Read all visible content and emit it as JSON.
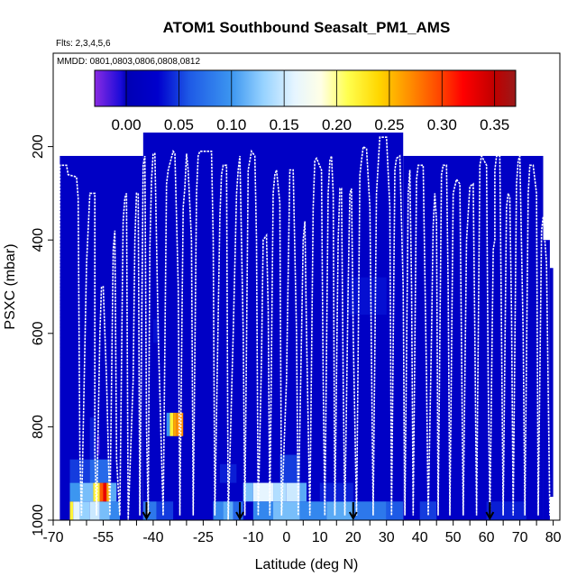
{
  "chart_data": {
    "type": "heatmap",
    "title": "ATOM1 Southbound Seasalt_PM1_AMS",
    "subtitle_flights": "Flts: 2,3,4,5,6",
    "subtitle_dates": "MMDD: 0801,0803,0806,0808,0812",
    "xlabel": "Latitude (deg N)",
    "ylabel": "PSXC (mbar)",
    "xlim": [
      -70,
      82
    ],
    "ylim": [
      1000,
      0
    ],
    "x_tick_labels": [
      "-70",
      "-55",
      "-40",
      "-25",
      "-10",
      "0",
      "10",
      "20",
      "30",
      "40",
      "50",
      "60",
      "70",
      "80"
    ],
    "x_tick_values": [
      -70,
      -55,
      -40,
      -25,
      -10,
      0,
      10,
      20,
      30,
      40,
      50,
      60,
      70,
      80
    ],
    "y_tick_labels": [
      "200",
      "400",
      "600",
      "800",
      "1000"
    ],
    "y_tick_values": [
      200,
      400,
      600,
      800,
      1000
    ],
    "colorbar": {
      "min": -0.03,
      "max": 0.37,
      "tick_labels": [
        "0.00",
        "0.05",
        "0.10",
        "0.15",
        "0.20",
        "0.25",
        "0.30",
        "0.35"
      ],
      "tick_values": [
        0.0,
        0.05,
        0.1,
        0.15,
        0.2,
        0.25,
        0.3,
        0.35
      ],
      "stops": [
        {
          "v": -0.03,
          "c": "#8a2be2"
        },
        {
          "v": -0.005,
          "c": "#1a0bd9"
        },
        {
          "v": 0.0,
          "c": "#0000b4"
        },
        {
          "v": 0.03,
          "c": "#0000cd"
        },
        {
          "v": 0.06,
          "c": "#1e5ae6"
        },
        {
          "v": 0.1,
          "c": "#3c96f0"
        },
        {
          "v": 0.13,
          "c": "#96d2ff"
        },
        {
          "v": 0.16,
          "c": "#e6f5ff"
        },
        {
          "v": 0.185,
          "c": "#ffffe6"
        },
        {
          "v": 0.21,
          "c": "#ffff50"
        },
        {
          "v": 0.24,
          "c": "#ffd700"
        },
        {
          "v": 0.27,
          "c": "#ff8c00"
        },
        {
          "v": 0.3,
          "c": "#ff4000"
        },
        {
          "v": 0.32,
          "c": "#ff0000"
        },
        {
          "v": 0.35,
          "c": "#c00000"
        },
        {
          "v": 0.37,
          "c": "#9a1a1a"
        }
      ]
    },
    "background_value": 0.02,
    "coverage": [
      {
        "lat0": -68,
        "lat1": -43,
        "p_top": 220,
        "p_bot": 1000
      },
      {
        "lat0": -43,
        "lat1": 35,
        "p_top": 170,
        "p_bot": 1000
      },
      {
        "lat0": 35,
        "lat1": 77,
        "p_top": 220,
        "p_bot": 1000
      },
      {
        "lat0": 77,
        "lat1": 79,
        "p_top": 400,
        "p_bot": 1000
      },
      {
        "lat0": 79,
        "lat1": 80,
        "p_top": 460,
        "p_bot": 950
      }
    ],
    "cells": [
      {
        "lat0": -65,
        "lat1": -64,
        "p_top": 960,
        "p_bot": 1000,
        "value": 0.22
      },
      {
        "lat0": -64,
        "lat1": -62,
        "p_top": 960,
        "p_bot": 1000,
        "value": 0.16
      },
      {
        "lat0": -62,
        "lat1": -59,
        "p_top": 960,
        "p_bot": 1000,
        "value": 0.13
      },
      {
        "lat0": -59,
        "lat1": -56,
        "p_top": 960,
        "p_bot": 1000,
        "value": 0.15
      },
      {
        "lat0": -56,
        "lat1": -53,
        "p_top": 960,
        "p_bot": 1000,
        "value": 0.12
      },
      {
        "lat0": -53,
        "lat1": -50,
        "p_top": 960,
        "p_bot": 1000,
        "value": 0.09
      },
      {
        "lat0": -65,
        "lat1": -62,
        "p_top": 920,
        "p_bot": 960,
        "value": 0.1
      },
      {
        "lat0": -62,
        "lat1": -58,
        "p_top": 920,
        "p_bot": 960,
        "value": 0.12
      },
      {
        "lat0": -58,
        "lat1": -56,
        "p_top": 920,
        "p_bot": 960,
        "value": 0.22
      },
      {
        "lat0": -56,
        "lat1": -55,
        "p_top": 920,
        "p_bot": 960,
        "value": 0.29
      },
      {
        "lat0": -55,
        "lat1": -54,
        "p_top": 920,
        "p_bot": 960,
        "value": 0.33
      },
      {
        "lat0": -54,
        "lat1": -53,
        "p_top": 920,
        "p_bot": 960,
        "value": 0.26
      },
      {
        "lat0": -53,
        "lat1": -51,
        "p_top": 920,
        "p_bot": 960,
        "value": 0.11
      },
      {
        "lat0": -65,
        "lat1": -59,
        "p_top": 870,
        "p_bot": 920,
        "value": 0.05
      },
      {
        "lat0": -59,
        "lat1": -53,
        "p_top": 870,
        "p_bot": 920,
        "value": 0.07
      },
      {
        "lat0": -59,
        "lat1": -57,
        "p_top": 780,
        "p_bot": 870,
        "value": 0.04
      },
      {
        "lat0": -57,
        "lat1": -56,
        "p_top": 820,
        "p_bot": 860,
        "value": -0.01
      },
      {
        "lat0": -36,
        "lat1": -35,
        "p_top": 770,
        "p_bot": 820,
        "value": 0.1
      },
      {
        "lat0": -35,
        "lat1": -34,
        "p_top": 770,
        "p_bot": 820,
        "value": 0.22
      },
      {
        "lat0": -34,
        "lat1": -33,
        "p_top": 770,
        "p_bot": 820,
        "value": 0.26
      },
      {
        "lat0": -33,
        "lat1": -31,
        "p_top": 770,
        "p_bot": 820,
        "value": 0.27
      },
      {
        "lat0": -43,
        "lat1": -39,
        "p_top": 960,
        "p_bot": 1000,
        "value": 0.08
      },
      {
        "lat0": -39,
        "lat1": -34,
        "p_top": 960,
        "p_bot": 1000,
        "value": 0.05
      },
      {
        "lat0": -22,
        "lat1": -19,
        "p_top": 960,
        "p_bot": 1000,
        "value": 0.09
      },
      {
        "lat0": -19,
        "lat1": -16,
        "p_top": 960,
        "p_bot": 1000,
        "value": 0.11
      },
      {
        "lat0": -16,
        "lat1": -13,
        "p_top": 960,
        "p_bot": 1000,
        "value": 0.07
      },
      {
        "lat0": -13,
        "lat1": -10,
        "p_top": 920,
        "p_bot": 960,
        "value": 0.12
      },
      {
        "lat0": -10,
        "lat1": -4,
        "p_top": 920,
        "p_bot": 960,
        "value": 0.16
      },
      {
        "lat0": -4,
        "lat1": 0,
        "p_top": 920,
        "p_bot": 960,
        "value": 0.14
      },
      {
        "lat0": 0,
        "lat1": 4,
        "p_top": 920,
        "p_bot": 960,
        "value": 0.15
      },
      {
        "lat0": 4,
        "lat1": 6,
        "p_top": 920,
        "p_bot": 960,
        "value": 0.11
      },
      {
        "lat0": -10,
        "lat1": -4,
        "p_top": 960,
        "p_bot": 1000,
        "value": 0.09
      },
      {
        "lat0": -4,
        "lat1": 4,
        "p_top": 960,
        "p_bot": 1000,
        "value": 0.12
      },
      {
        "lat0": 4,
        "lat1": 12,
        "p_top": 960,
        "p_bot": 1000,
        "value": 0.09
      },
      {
        "lat0": 12,
        "lat1": 20,
        "p_top": 960,
        "p_bot": 1000,
        "value": 0.11
      },
      {
        "lat0": 20,
        "lat1": 30,
        "p_top": 960,
        "p_bot": 1000,
        "value": 0.08
      },
      {
        "lat0": 30,
        "lat1": 35,
        "p_top": 960,
        "p_bot": 1000,
        "value": 0.06
      },
      {
        "lat0": -2,
        "lat1": 4,
        "p_top": 860,
        "p_bot": 920,
        "value": 0.05
      },
      {
        "lat0": 10,
        "lat1": 20,
        "p_top": 920,
        "p_bot": 960,
        "value": 0.04
      },
      {
        "lat0": 18,
        "lat1": 30,
        "p_top": 480,
        "p_bot": 560,
        "value": 0.035
      },
      {
        "lat0": -40,
        "lat1": -38,
        "p_top": 570,
        "p_bot": 620,
        "value": 0.035
      },
      {
        "lat0": -20,
        "lat1": -15,
        "p_top": 880,
        "p_bot": 920,
        "value": 0.04
      },
      {
        "lat0": 40,
        "lat1": 45,
        "p_top": 960,
        "p_bot": 1000,
        "value": 0.05
      },
      {
        "lat0": 60,
        "lat1": 72,
        "p_top": 960,
        "p_bot": 1000,
        "value": 0.04
      }
    ],
    "flight_track": [
      [
        -68.5,
        1000
      ],
      [
        -68,
        240
      ],
      [
        -66,
        240
      ],
      [
        -65.5,
        260
      ],
      [
        -63,
        265
      ],
      [
        -62.5,
        310
      ],
      [
        -62,
        860
      ],
      [
        -61.5,
        990
      ],
      [
        -60,
        450
      ],
      [
        -59,
        300
      ],
      [
        -58,
        300
      ],
      [
        -57.5,
        300
      ],
      [
        -57.5,
        850
      ],
      [
        -57,
        990
      ],
      [
        -56,
        600
      ],
      [
        -55.5,
        500
      ],
      [
        -55,
        500
      ],
      [
        -54,
        700
      ],
      [
        -53,
        990
      ],
      [
        -52,
        420
      ],
      [
        -51.5,
        380
      ],
      [
        -51,
        870
      ],
      [
        -50,
        990
      ],
      [
        -49,
        360
      ],
      [
        -48.5,
        310
      ],
      [
        -48,
        300
      ],
      [
        -47.5,
        1000
      ],
      [
        -46,
        700
      ],
      [
        -45.5,
        400
      ],
      [
        -45,
        300
      ],
      [
        -44.5,
        300
      ],
      [
        -44,
        990
      ],
      [
        -43,
        240
      ],
      [
        -42.5,
        220
      ],
      [
        -42,
        800
      ],
      [
        -41.5,
        990
      ],
      [
        -41,
        420
      ],
      [
        -40.5,
        270
      ],
      [
        -40,
        215
      ],
      [
        -39.5,
        215
      ],
      [
        -38.5,
        600
      ],
      [
        -37,
        990
      ],
      [
        -36,
        280
      ],
      [
        -35.5,
        250
      ],
      [
        -34,
        210
      ],
      [
        -33.5,
        215
      ],
      [
        -32.5,
        500
      ],
      [
        -32,
        990
      ],
      [
        -31,
        330
      ],
      [
        -30.5,
        290
      ],
      [
        -30,
        215
      ],
      [
        -29.5,
        250
      ],
      [
        -28.5,
        400
      ],
      [
        -28,
        990
      ],
      [
        -27,
        300
      ],
      [
        -26.5,
        220
      ],
      [
        -26,
        210
      ],
      [
        -22.5,
        210
      ],
      [
        -22,
        400
      ],
      [
        -21.5,
        990
      ],
      [
        -20,
        350
      ],
      [
        -19.5,
        260
      ],
      [
        -19,
        240
      ],
      [
        -18,
        240
      ],
      [
        -17.5,
        1000
      ],
      [
        -16,
        600
      ],
      [
        -15,
        300
      ],
      [
        -14.5,
        250
      ],
      [
        -14,
        220
      ],
      [
        -13,
        600
      ],
      [
        -12.5,
        990
      ],
      [
        -11.5,
        250
      ],
      [
        -10.5,
        210
      ],
      [
        -9.5,
        220
      ],
      [
        -9,
        400
      ],
      [
        -8.5,
        990
      ],
      [
        -7.5,
        650
      ],
      [
        -7,
        400
      ],
      [
        -6,
        390
      ],
      [
        -5.5,
        550
      ],
      [
        -5,
        990
      ],
      [
        -4,
        300
      ],
      [
        -3.5,
        260
      ],
      [
        -3,
        250
      ],
      [
        -2,
        320
      ],
      [
        -1.5,
        990
      ],
      [
        0,
        700
      ],
      [
        1,
        250
      ],
      [
        2,
        250
      ],
      [
        3,
        600
      ],
      [
        3.5,
        990
      ],
      [
        4.5,
        600
      ],
      [
        5,
        400
      ],
      [
        5.5,
        360
      ],
      [
        6,
        600
      ],
      [
        7,
        990
      ],
      [
        8,
        330
      ],
      [
        8.5,
        230
      ],
      [
        9,
        225
      ],
      [
        10.5,
        250
      ],
      [
        11,
        700
      ],
      [
        11.5,
        990
      ],
      [
        12.5,
        300
      ],
      [
        13,
        230
      ],
      [
        13.5,
        220
      ],
      [
        14,
        300
      ],
      [
        14.5,
        990
      ],
      [
        15.5,
        400
      ],
      [
        16,
        290
      ],
      [
        16.5,
        290
      ],
      [
        17,
        700
      ],
      [
        17.5,
        990
      ],
      [
        18.5,
        500
      ],
      [
        19,
        300
      ],
      [
        19.5,
        290
      ],
      [
        20,
        600
      ],
      [
        21,
        990
      ],
      [
        22,
        260
      ],
      [
        22.5,
        230
      ],
      [
        23,
        200
      ],
      [
        24,
        205
      ],
      [
        25,
        330
      ],
      [
        26,
        990
      ],
      [
        27,
        300
      ],
      [
        28,
        180
      ],
      [
        30,
        180
      ],
      [
        31,
        330
      ],
      [
        31.5,
        990
      ],
      [
        32.5,
        250
      ],
      [
        33,
        225
      ],
      [
        34,
        220
      ],
      [
        35,
        500
      ],
      [
        35.5,
        990
      ],
      [
        36.5,
        300
      ],
      [
        37,
        250
      ],
      [
        37.5,
        500
      ],
      [
        38,
        990
      ],
      [
        39,
        270
      ],
      [
        39.5,
        240
      ],
      [
        41,
        240
      ],
      [
        42,
        700
      ],
      [
        42.5,
        990
      ],
      [
        43.5,
        600
      ],
      [
        44,
        370
      ],
      [
        44.5,
        300
      ],
      [
        45,
        360
      ],
      [
        45.5,
        990
      ],
      [
        46.5,
        260
      ],
      [
        47,
        240
      ],
      [
        48,
        240
      ],
      [
        48.5,
        500
      ],
      [
        49,
        990
      ],
      [
        50,
        300
      ],
      [
        51,
        270
      ],
      [
        52,
        280
      ],
      [
        53,
        990
      ],
      [
        54,
        400
      ],
      [
        55,
        285
      ],
      [
        56,
        280
      ],
      [
        56.5,
        600
      ],
      [
        57,
        990
      ],
      [
        58,
        240
      ],
      [
        58.5,
        220
      ],
      [
        60,
        240
      ],
      [
        60.5,
        700
      ],
      [
        61,
        990
      ],
      [
        62,
        420
      ],
      [
        62.5,
        400
      ],
      [
        62.5,
        250
      ],
      [
        63,
        220
      ],
      [
        64,
        220
      ],
      [
        64.5,
        600
      ],
      [
        65,
        990
      ],
      [
        66,
        330
      ],
      [
        66.5,
        300
      ],
      [
        67,
        310
      ],
      [
        67.5,
        560
      ],
      [
        68,
        990
      ],
      [
        69,
        280
      ],
      [
        69.5,
        230
      ],
      [
        70,
        220
      ],
      [
        71,
        600
      ],
      [
        71.5,
        990
      ],
      [
        72.5,
        300
      ],
      [
        73,
        240
      ],
      [
        74,
        240
      ],
      [
        75,
        300
      ],
      [
        75.5,
        990
      ],
      [
        76.5,
        380
      ],
      [
        77,
        350
      ],
      [
        78,
        450
      ],
      [
        79,
        990
      ]
    ],
    "arrow_markers": [
      -42,
      -14,
      20,
      61
    ]
  }
}
